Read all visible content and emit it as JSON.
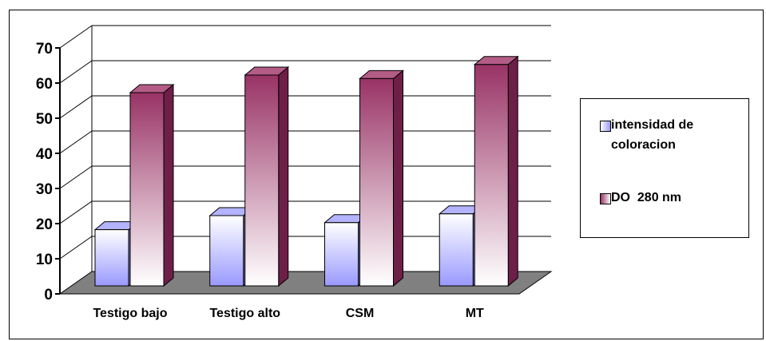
{
  "chart_data": {
    "type": "bar",
    "style": "3d-clustered-column",
    "title": "",
    "xlabel": "",
    "ylabel": "",
    "categories": [
      "Testigo bajo",
      "Testigo alto",
      "CSM",
      "MT"
    ],
    "series": [
      {
        "name": "intensidad de coloracion",
        "values": [
          16,
          20,
          18,
          20.5
        ],
        "color": "#9999ff"
      },
      {
        "name": "DO  280 nm",
        "values": [
          55,
          60,
          59,
          63
        ],
        "color": "#993366"
      }
    ],
    "ylim": [
      0,
      70
    ],
    "yticks": [
      0,
      10,
      20,
      30,
      40,
      50,
      60,
      70
    ],
    "grid": true,
    "legend_position": "right",
    "floor_color": "#808080"
  }
}
